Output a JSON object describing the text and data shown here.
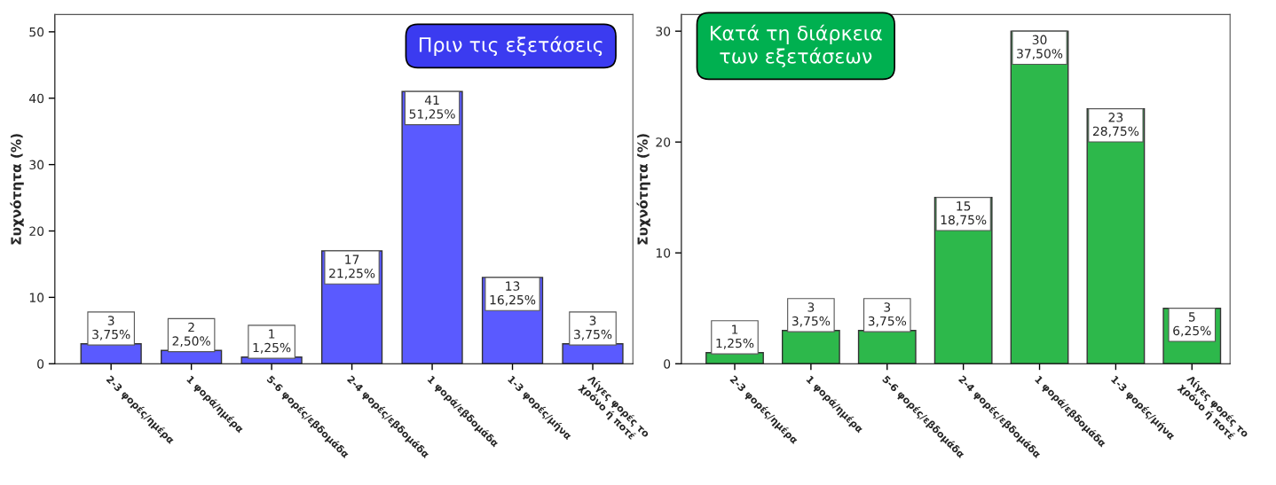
{
  "chart_data": [
    {
      "type": "bar",
      "annotations": [
        "Πριν τις εξετάσεις"
      ],
      "ylabel": "Συχνότητα (%)",
      "categories": [
        "2-3 φορές/ημέρα",
        "1 φορά/ημέρα",
        "5-6 φορές/εβδομάδα",
        "2-4 φορές/εβδομάδα",
        "1 φορά/εβδομάδα",
        "1-3 φορές/μήνα",
        "Λίγες φορές το\nχρόνο ή ποτέ"
      ],
      "series": [
        {
          "color": "#5a5aff",
          "values": [
            3,
            2,
            1,
            17,
            41,
            13,
            3
          ],
          "value_labels": [
            "3\n3,75%",
            "2\n2,50%",
            "1\n1,25%",
            "17\n21,25%",
            "41\n51,25%",
            "13\n16,25%",
            "3\n3,75%"
          ]
        }
      ],
      "ylim": [
        0,
        52.6
      ],
      "yticks": [
        0,
        10,
        20,
        30,
        40,
        50
      ],
      "grid": false
    },
    {
      "type": "bar",
      "annotations": [
        "Κατά τη διάρκεια\nτων εξετάσεων"
      ],
      "ylabel": "Συχνότητα (%)",
      "categories": [
        "2-3 φορές/ημέρα",
        "1 φορά/ημέρα",
        "5-6 φορές/εβδομάδα",
        "2-4 φορές/εβδομάδα",
        "1 φορά/εβδομάδα",
        "1-3 φορές/μήνα",
        "Λίγες φορές το\nχρόνο ή ποτέ"
      ],
      "series": [
        {
          "color": "#2db84b",
          "values": [
            1,
            3,
            3,
            15,
            30,
            23,
            5
          ],
          "value_labels": [
            "1\n1,25%",
            "3\n3,75%",
            "3\n3,75%",
            "15\n18,75%",
            "30\n37,50%",
            "23\n28,75%",
            "5\n6,25%"
          ]
        }
      ],
      "ylim": [
        0,
        31.5
      ],
      "yticks": [
        0,
        10,
        20,
        30
      ],
      "grid": false
    }
  ]
}
